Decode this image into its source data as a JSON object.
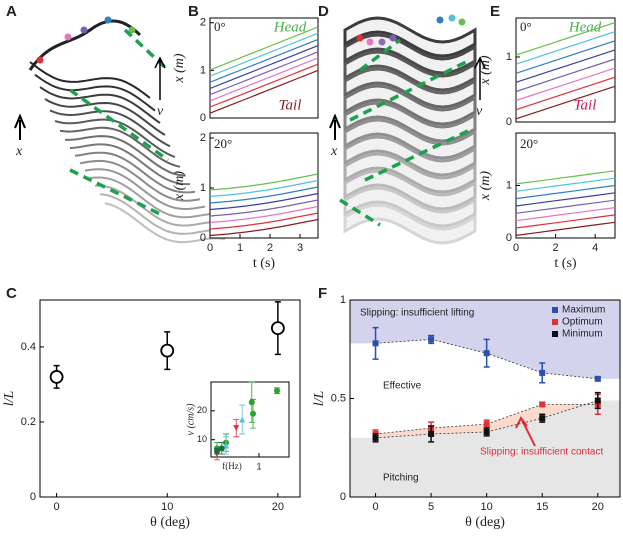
{
  "figure": {
    "panel_labels": [
      "A",
      "B",
      "C",
      "D",
      "E",
      "F"
    ],
    "illustration_A": {
      "speed": "v",
      "position": "x"
    },
    "illustration_D": {
      "speed": "v",
      "position": "x"
    }
  },
  "chart_data": [
    {
      "type": "line",
      "ylabel": "x (m)",
      "xlim": [
        0,
        3.6
      ],
      "ylim": [
        0,
        2.1
      ],
      "yticks": [
        0,
        1,
        2
      ],
      "annotations": [
        "0°",
        "Head",
        "Tail"
      ],
      "x": [
        0,
        0.6,
        1.2,
        1.8,
        2.4,
        3.0,
        3.6
      ],
      "series": [
        {
          "color": "#8b1a1a",
          "values": [
            0.1,
            0.25,
            0.4,
            0.55,
            0.7,
            0.85,
            1.0
          ]
        },
        {
          "color": "#e0303a",
          "values": [
            0.23,
            0.38,
            0.53,
            0.68,
            0.83,
            0.98,
            1.13
          ]
        },
        {
          "color": "#e377c2",
          "values": [
            0.36,
            0.51,
            0.66,
            0.81,
            0.96,
            1.11,
            1.26
          ]
        },
        {
          "color": "#7a5fb0",
          "values": [
            0.49,
            0.64,
            0.79,
            0.94,
            1.09,
            1.24,
            1.39
          ]
        },
        {
          "color": "#3a3f9e",
          "values": [
            0.62,
            0.77,
            0.92,
            1.07,
            1.22,
            1.37,
            1.52
          ]
        },
        {
          "color": "#2f7fc1",
          "values": [
            0.75,
            0.9,
            1.05,
            1.2,
            1.35,
            1.5,
            1.65
          ]
        },
        {
          "color": "#4fc3d9",
          "values": [
            0.88,
            1.03,
            1.18,
            1.33,
            1.48,
            1.63,
            1.78
          ]
        },
        {
          "color": "#6abf4b",
          "values": [
            1.01,
            1.16,
            1.31,
            1.46,
            1.61,
            1.76,
            1.91
          ]
        }
      ]
    },
    {
      "type": "line",
      "ylabel": "x (m)",
      "xlabel": "t (s)",
      "xlim": [
        0,
        3.6
      ],
      "ylim": [
        0,
        2.1
      ],
      "yticks": [
        0,
        1,
        2
      ],
      "xticks": [
        0,
        1,
        2,
        3
      ],
      "annotations": [
        "20°"
      ],
      "x": [
        0,
        0.6,
        1.2,
        1.8,
        2.4,
        3.0,
        3.6
      ],
      "series": [
        {
          "color": "#8b1a1a",
          "values": [
            0.05,
            0.08,
            0.12,
            0.17,
            0.23,
            0.3,
            0.37
          ]
        },
        {
          "color": "#e0303a",
          "values": [
            0.18,
            0.21,
            0.25,
            0.3,
            0.36,
            0.43,
            0.5
          ]
        },
        {
          "color": "#e377c2",
          "values": [
            0.31,
            0.34,
            0.38,
            0.43,
            0.49,
            0.56,
            0.63
          ]
        },
        {
          "color": "#7a5fb0",
          "values": [
            0.44,
            0.47,
            0.51,
            0.56,
            0.62,
            0.69,
            0.76
          ]
        },
        {
          "color": "#3a3f9e",
          "values": [
            0.57,
            0.6,
            0.64,
            0.69,
            0.75,
            0.82,
            0.89
          ]
        },
        {
          "color": "#2f7fc1",
          "values": [
            0.7,
            0.73,
            0.77,
            0.82,
            0.88,
            0.95,
            1.02
          ]
        },
        {
          "color": "#4fc3d9",
          "values": [
            0.83,
            0.86,
            0.9,
            0.95,
            1.01,
            1.08,
            1.15
          ]
        },
        {
          "color": "#6abf4b",
          "values": [
            0.96,
            0.99,
            1.03,
            1.08,
            1.14,
            1.21,
            1.28
          ]
        }
      ]
    },
    {
      "type": "line",
      "ylabel": "x (m)",
      "xlim": [
        0,
        5
      ],
      "ylim": [
        0,
        1.6
      ],
      "yticks": [
        0,
        1
      ],
      "annotations": [
        "0°",
        "Head",
        "Tail"
      ],
      "x": [
        0,
        1,
        2,
        3,
        4,
        5
      ],
      "series": [
        {
          "color": "#8b1a1a",
          "values": [
            0.05,
            0.15,
            0.25,
            0.35,
            0.45,
            0.55
          ]
        },
        {
          "color": "#e0303a",
          "values": [
            0.19,
            0.29,
            0.39,
            0.49,
            0.59,
            0.69
          ]
        },
        {
          "color": "#e377c2",
          "values": [
            0.33,
            0.43,
            0.53,
            0.63,
            0.73,
            0.83
          ]
        },
        {
          "color": "#7a5fb0",
          "values": [
            0.47,
            0.57,
            0.67,
            0.77,
            0.87,
            0.97
          ]
        },
        {
          "color": "#3a3f9e",
          "values": [
            0.61,
            0.71,
            0.81,
            0.91,
            1.01,
            1.11
          ]
        },
        {
          "color": "#2f7fc1",
          "values": [
            0.75,
            0.85,
            0.95,
            1.05,
            1.15,
            1.25
          ]
        },
        {
          "color": "#4fc3d9",
          "values": [
            0.89,
            0.99,
            1.09,
            1.19,
            1.29,
            1.39
          ]
        },
        {
          "color": "#6abf4b",
          "values": [
            1.03,
            1.13,
            1.23,
            1.33,
            1.43,
            1.53
          ]
        }
      ]
    },
    {
      "type": "line",
      "ylabel": "x (m)",
      "xlabel": "t (s)",
      "xlim": [
        0,
        5
      ],
      "ylim": [
        0,
        2
      ],
      "yticks": [
        0,
        1
      ],
      "xticks": [
        0,
        2,
        4
      ],
      "annotations": [
        "20°"
      ],
      "x": [
        0,
        1,
        2,
        3,
        4,
        5
      ],
      "series": [
        {
          "color": "#8b1a1a",
          "values": [
            0.05,
            0.1,
            0.15,
            0.2,
            0.25,
            0.3
          ]
        },
        {
          "color": "#e0303a",
          "values": [
            0.19,
            0.24,
            0.29,
            0.34,
            0.39,
            0.44
          ]
        },
        {
          "color": "#e377c2",
          "values": [
            0.33,
            0.38,
            0.43,
            0.48,
            0.53,
            0.58
          ]
        },
        {
          "color": "#7a5fb0",
          "values": [
            0.47,
            0.52,
            0.57,
            0.62,
            0.67,
            0.72
          ]
        },
        {
          "color": "#3a3f9e",
          "values": [
            0.61,
            0.66,
            0.71,
            0.76,
            0.81,
            0.86
          ]
        },
        {
          "color": "#2f7fc1",
          "values": [
            0.75,
            0.8,
            0.85,
            0.9,
            0.95,
            1.0
          ]
        },
        {
          "color": "#4fc3d9",
          "values": [
            0.89,
            0.94,
            0.99,
            1.04,
            1.09,
            1.14
          ]
        },
        {
          "color": "#6abf4b",
          "values": [
            1.03,
            1.08,
            1.13,
            1.18,
            1.23,
            1.28
          ]
        }
      ]
    },
    {
      "type": "scatter",
      "ylabel": "l/L",
      "xlabel": "θ (deg)",
      "xlim": [
        -1.5,
        22
      ],
      "ylim": [
        0,
        0.525
      ],
      "xticks": [
        0,
        10,
        20
      ],
      "yticks": [
        0,
        0.2,
        0.4
      ],
      "series": [
        {
          "color": "#000000",
          "marker": "open-circle",
          "x": [
            0,
            10,
            20
          ],
          "values": [
            0.32,
            0.39,
            0.45
          ],
          "errors": [
            0.03,
            0.05,
            0.07
          ]
        }
      ]
    },
    {
      "type": "scatter",
      "ylabel": "v (cm/s)",
      "xlabel": "f(Hz)",
      "xlim": [
        0.2,
        1.5
      ],
      "ylim": [
        4,
        30
      ],
      "xticks": [
        1
      ],
      "yticks": [
        10,
        20
      ],
      "series": [
        {
          "color": "#2ca02c",
          "marker": "circle",
          "x": [
            0.3,
            0.45,
            0.88,
            0.9,
            1.3
          ],
          "values": [
            7,
            9,
            23,
            19,
            27
          ],
          "errors": [
            2,
            3,
            7,
            5,
            1
          ]
        },
        {
          "color": "#e0303a",
          "marker": "triangle-down",
          "x": [
            0.3,
            0.62
          ],
          "values": [
            5,
            14
          ],
          "errors": [
            2,
            3
          ]
        },
        {
          "color": "#5bc0de",
          "marker": "triangle",
          "x": [
            0.45,
            0.72
          ],
          "values": [
            8,
            17
          ],
          "errors": [
            3,
            5
          ]
        },
        {
          "color": "#1b6e3a",
          "marker": "circle",
          "x": [
            0.3,
            0.38
          ],
          "values": [
            6,
            7
          ],
          "errors": [
            1,
            2
          ]
        }
      ]
    },
    {
      "type": "scatter",
      "ylabel": "l/L",
      "xlabel": "θ (deg)",
      "xlim": [
        -2.3,
        22
      ],
      "ylim": [
        0,
        1
      ],
      "xticks": [
        0,
        5,
        10,
        15,
        20
      ],
      "yticks": [
        0,
        0.5,
        1
      ],
      "legend": "top-right",
      "fit_lines": true,
      "region_colors": [
        "#d3d3ee",
        "#fbd9cc",
        "#e6e6e6"
      ],
      "annotations": [
        "Slipping: insufficient lifting",
        "Effective",
        "Pitching",
        "Slipping: insufficient contact"
      ],
      "series": [
        {
          "name": "Maximum",
          "color": "#2b4fb0",
          "marker": "square",
          "x": [
            0,
            5,
            10,
            15,
            20
          ],
          "values": [
            0.78,
            0.8,
            0.73,
            0.63,
            0.6
          ],
          "errors": [
            0.08,
            0.02,
            0.07,
            0.05,
            0.01
          ]
        },
        {
          "name": "Optimum",
          "color": "#e0303a",
          "marker": "square",
          "x": [
            0,
            5,
            10,
            15,
            20
          ],
          "values": [
            0.32,
            0.35,
            0.37,
            0.47,
            0.47
          ],
          "errors": [
            0.02,
            0.03,
            0.02,
            0.01,
            0.05
          ]
        },
        {
          "name": "Minimum",
          "color": "#111111",
          "marker": "square",
          "x": [
            0,
            5,
            10,
            15,
            20
          ],
          "values": [
            0.3,
            0.32,
            0.33,
            0.4,
            0.49
          ],
          "errors": [
            0.02,
            0.04,
            0.02,
            0.02,
            0.04
          ]
        }
      ]
    }
  ]
}
